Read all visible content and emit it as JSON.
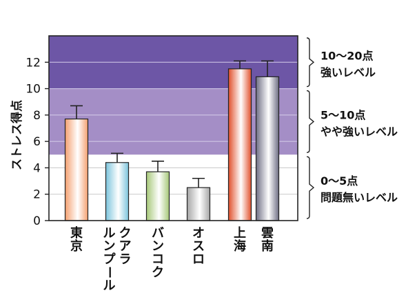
{
  "chart_data": {
    "type": "bar",
    "title": "",
    "xlabel": "",
    "ylabel": "ストレス得点",
    "ylim": [
      0,
      14
    ],
    "yticks": [
      0,
      2,
      4,
      6,
      8,
      10,
      12
    ],
    "grid": true,
    "categories": [
      "東京",
      "クアラルンプール",
      "バンコク",
      "オスロ",
      "上海",
      "雲南"
    ],
    "category_lines": [
      [
        "東京"
      ],
      [
        "クアラ",
        "ルンプール"
      ],
      [
        "バンコク"
      ],
      [
        "オスロ"
      ],
      [
        "上海"
      ],
      [
        "雲南"
      ]
    ],
    "values": [
      7.7,
      4.4,
      3.7,
      2.5,
      11.5,
      10.9
    ],
    "errors": [
      1.0,
      0.7,
      0.8,
      0.7,
      0.6,
      1.2
    ],
    "bar_colors": [
      "#f4a070",
      "#7cc4dc",
      "#a6c878",
      "#a6a6a6",
      "#e0502c",
      "#6e6e84"
    ],
    "bands": [
      {
        "from": 0,
        "to": 5,
        "color": "#ffffff",
        "line1": "0〜5点",
        "line2": "問題無いレベル"
      },
      {
        "from": 5,
        "to": 10,
        "color": "#a48ec6",
        "line1": "5〜10点",
        "line2": "やや強いレベル"
      },
      {
        "from": 10,
        "to": 14,
        "color": "#6d56a6",
        "line1": "10〜20点",
        "line2": "強いレベル"
      }
    ]
  }
}
